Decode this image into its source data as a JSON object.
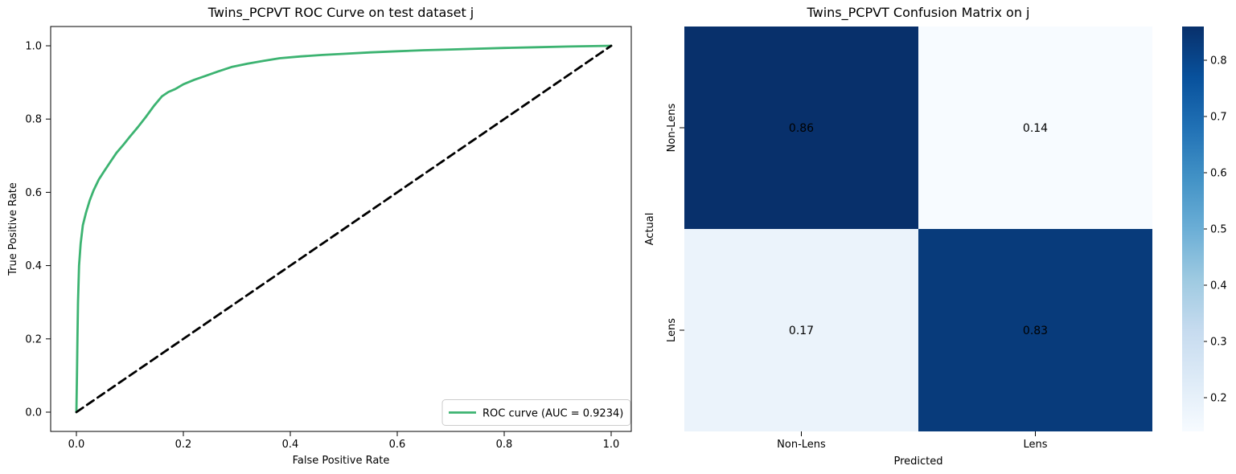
{
  "figure": {
    "background": "#ffffff"
  },
  "chart_data": [
    {
      "type": "line",
      "title": "Twins_PCPVT ROC Curve on test dataset j",
      "xlabel": "False Positive Rate",
      "ylabel": "True Positive Rate",
      "xlim": [
        0.0,
        1.0
      ],
      "ylim": [
        0.0,
        1.0
      ],
      "x_ticks": [
        "0.0",
        "0.2",
        "0.4",
        "0.6",
        "0.8",
        "1.0"
      ],
      "y_ticks": [
        "0.0",
        "0.2",
        "0.4",
        "0.6",
        "0.8",
        "1.0"
      ],
      "grid": false,
      "auc": 0.9234,
      "legend": {
        "position": "lower-right",
        "entries": [
          {
            "label": "ROC curve (AUC = 0.9234)",
            "color": "#3cb371"
          }
        ]
      },
      "series": [
        {
          "name": "roc-curve",
          "color": "#3cb371",
          "style": "solid",
          "points": [
            [
              0,
              0
            ],
            [
              0.001,
              0.1
            ],
            [
              0.002,
              0.2
            ],
            [
              0.003,
              0.3
            ],
            [
              0.005,
              0.4
            ],
            [
              0.008,
              0.46
            ],
            [
              0.012,
              0.51
            ],
            [
              0.018,
              0.545
            ],
            [
              0.025,
              0.578
            ],
            [
              0.032,
              0.605
            ],
            [
              0.042,
              0.635
            ],
            [
              0.052,
              0.658
            ],
            [
              0.063,
              0.682
            ],
            [
              0.075,
              0.708
            ],
            [
              0.088,
              0.73
            ],
            [
              0.1,
              0.752
            ],
            [
              0.115,
              0.778
            ],
            [
              0.13,
              0.806
            ],
            [
              0.145,
              0.836
            ],
            [
              0.16,
              0.862
            ],
            [
              0.172,
              0.874
            ],
            [
              0.185,
              0.882
            ],
            [
              0.2,
              0.895
            ],
            [
              0.22,
              0.907
            ],
            [
              0.24,
              0.917
            ],
            [
              0.265,
              0.93
            ],
            [
              0.29,
              0.942
            ],
            [
              0.32,
              0.951
            ],
            [
              0.35,
              0.959
            ],
            [
              0.38,
              0.966
            ],
            [
              0.42,
              0.971
            ],
            [
              0.46,
              0.975
            ],
            [
              0.5,
              0.978
            ],
            [
              0.55,
              0.982
            ],
            [
              0.6,
              0.985
            ],
            [
              0.65,
              0.988
            ],
            [
              0.7,
              0.99
            ],
            [
              0.75,
              0.992
            ],
            [
              0.8,
              0.994
            ],
            [
              0.86,
              0.996
            ],
            [
              0.92,
              0.998
            ],
            [
              1,
              1
            ]
          ]
        },
        {
          "name": "chance-diagonal",
          "color": "#000000",
          "style": "dashed",
          "points": [
            [
              0,
              0
            ],
            [
              1,
              1
            ]
          ]
        }
      ]
    },
    {
      "type": "heatmap",
      "title": "Twins_PCPVT Confusion Matrix on j",
      "xlabel": "Predicted",
      "ylabel": "Actual",
      "col_labels": [
        "Non-Lens",
        "Lens"
      ],
      "row_labels": [
        "Non-Lens",
        "Lens"
      ],
      "matrix": [
        [
          0.86,
          0.14
        ],
        [
          0.17,
          0.83
        ]
      ],
      "cell_text": [
        [
          "0.86",
          "0.14"
        ],
        [
          "0.17",
          "0.83"
        ]
      ],
      "cell_colors": [
        [
          "#08306b",
          "#f7fbff"
        ],
        [
          "#ebf3fb",
          "#083b7b"
        ]
      ],
      "cell_text_colors": [
        [
          "#ffffff",
          "#262626"
        ],
        [
          "#262626",
          "#ffffff"
        ]
      ],
      "colorbar": {
        "vmin": 0.14,
        "vmax": 0.86,
        "ticks": [
          0.8,
          0.7,
          0.6,
          0.5,
          0.4,
          0.3,
          0.2
        ],
        "gradient_top_to_bottom": [
          "#08306b",
          "#08519c",
          "#2171b5",
          "#4292c6",
          "#6baed6",
          "#9ecae1",
          "#c6dbef",
          "#deebf7",
          "#f7fbff"
        ]
      }
    }
  ]
}
